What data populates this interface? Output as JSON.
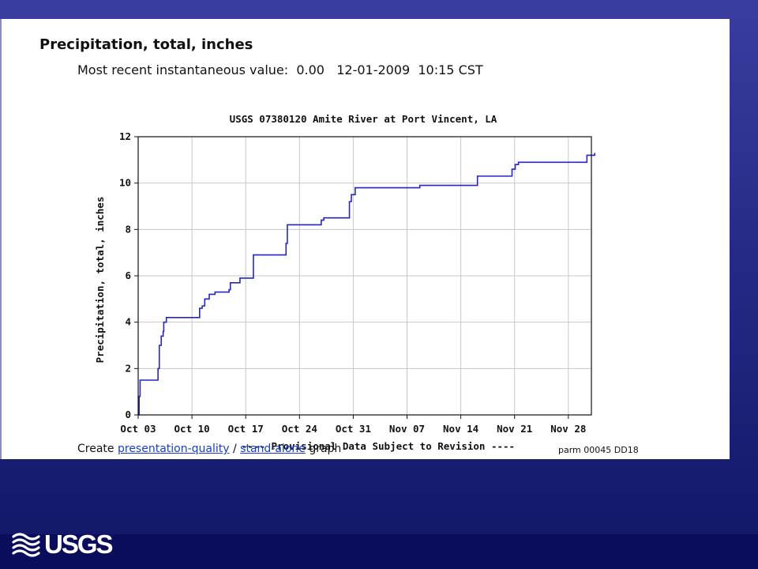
{
  "page": {
    "parameter_title": "Precipitation, total, inches",
    "recent_label": "Most recent instantaneous value:",
    "recent_value": "0.00",
    "recent_date": "12-01-2009",
    "recent_time": "10:15 CST",
    "footer": {
      "create_label": "Create",
      "link_presentation": "presentation-quality",
      "separator": "/",
      "link_standalone": "stand-alone",
      "graph_label": "graph"
    },
    "parm_code": "parm 00045 DD18",
    "logo_text": "USGS"
  },
  "colors": {
    "line": "#2525c8",
    "provisional": "#ee1111",
    "link": "#1a3fc4"
  },
  "chart_data": {
    "type": "line",
    "title": "USGS 07380120 Amite River at Port Vincent, LA",
    "ylabel": "Precipitation, total, inches",
    "xlabel": "",
    "note": "---- Provisional Data Subject to Revision ----",
    "ylim": [
      0,
      12
    ],
    "yticks": [
      0,
      2,
      4,
      6,
      8,
      10,
      12
    ],
    "xlim": [
      "2009-10-03",
      "2009-12-01"
    ],
    "xticks": [
      {
        "date": "2009-10-03",
        "label": "Oct 03"
      },
      {
        "date": "2009-10-10",
        "label": "Oct 10"
      },
      {
        "date": "2009-10-17",
        "label": "Oct 17"
      },
      {
        "date": "2009-10-24",
        "label": "Oct 24"
      },
      {
        "date": "2009-10-31",
        "label": "Oct 31"
      },
      {
        "date": "2009-11-07",
        "label": "Nov 07"
      },
      {
        "date": "2009-11-14",
        "label": "Nov 14"
      },
      {
        "date": "2009-11-21",
        "label": "Nov 21"
      },
      {
        "date": "2009-11-28",
        "label": "Nov 28"
      }
    ],
    "grid": true,
    "series": [
      {
        "points": [
          [
            "2009-10-03 00:00",
            0.0
          ],
          [
            "2009-10-03 03:00",
            0.8
          ],
          [
            "2009-10-03 06:00",
            1.5
          ],
          [
            "2009-10-05 12:00",
            1.5
          ],
          [
            "2009-10-05 14:00",
            2.0
          ],
          [
            "2009-10-05 18:00",
            3.0
          ],
          [
            "2009-10-06 00:00",
            3.4
          ],
          [
            "2009-10-06 06:00",
            3.6
          ],
          [
            "2009-10-06 08:00",
            4.0
          ],
          [
            "2009-10-06 16:00",
            4.2
          ],
          [
            "2009-10-10 20:00",
            4.2
          ],
          [
            "2009-10-11 00:00",
            4.6
          ],
          [
            "2009-10-11 08:00",
            4.7
          ],
          [
            "2009-10-11 16:00",
            5.0
          ],
          [
            "2009-10-12 06:00",
            5.2
          ],
          [
            "2009-10-13 00:00",
            5.3
          ],
          [
            "2009-10-14 12:00",
            5.3
          ],
          [
            "2009-10-14 20:00",
            5.4
          ],
          [
            "2009-10-15 00:00",
            5.7
          ],
          [
            "2009-10-16 06:00",
            5.9
          ],
          [
            "2009-10-17 18:00",
            5.9
          ],
          [
            "2009-10-18 00:00",
            6.9
          ],
          [
            "2009-10-22 02:00",
            6.9
          ],
          [
            "2009-10-22 06:00",
            7.4
          ],
          [
            "2009-10-22 10:00",
            8.2
          ],
          [
            "2009-10-26 12:00",
            8.2
          ],
          [
            "2009-10-26 20:00",
            8.4
          ],
          [
            "2009-10-27 04:00",
            8.5
          ],
          [
            "2009-10-30 08:00",
            8.5
          ],
          [
            "2009-10-30 12:00",
            9.2
          ],
          [
            "2009-10-30 18:00",
            9.5
          ],
          [
            "2009-10-31 06:00",
            9.8
          ],
          [
            "2009-11-08 12:00",
            9.8
          ],
          [
            "2009-11-08 16:00",
            9.9
          ],
          [
            "2009-11-16 00:00",
            9.9
          ],
          [
            "2009-11-16 04:00",
            10.3
          ],
          [
            "2009-11-20 08:00",
            10.3
          ],
          [
            "2009-11-20 16:00",
            10.6
          ],
          [
            "2009-11-21 02:00",
            10.8
          ],
          [
            "2009-11-21 12:00",
            10.9
          ],
          [
            "2009-11-30 06:00",
            10.9
          ],
          [
            "2009-11-30 10:00",
            11.2
          ],
          [
            "2009-12-01 10:15",
            11.3
          ]
        ]
      }
    ]
  }
}
